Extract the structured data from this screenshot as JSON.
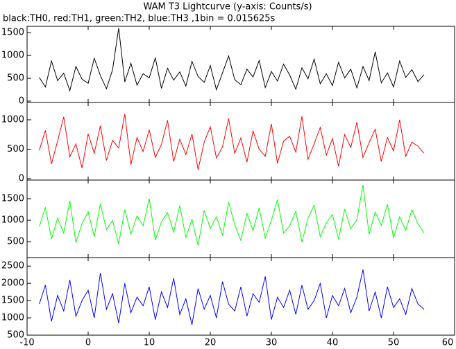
{
  "chart_data": {
    "type": "line",
    "title": "WAM T3 Lightcurve (y-axis: Counts/s)",
    "subtitle": "black:TH0, red:TH1, green:TH2, blue:TH3 ,1bin = 0.015625s",
    "x": [
      -8,
      -7,
      -6,
      -5,
      -4,
      -3,
      -2,
      -1,
      0,
      1,
      2,
      3,
      4,
      5,
      6,
      7,
      8,
      9,
      10,
      11,
      12,
      13,
      14,
      15,
      16,
      17,
      18,
      19,
      20,
      21,
      22,
      23,
      24,
      25,
      26,
      27,
      28,
      29,
      30,
      31,
      32,
      33,
      34,
      35,
      36,
      37,
      38,
      39,
      40,
      41,
      42,
      43,
      44,
      45,
      46,
      47,
      48,
      49,
      50,
      51,
      52,
      53,
      54,
      55
    ],
    "xlim": [
      -10,
      60
    ],
    "xticks": [
      -10,
      0,
      10,
      20,
      30,
      40,
      50,
      60
    ],
    "series": [
      {
        "color": "#000000",
        "ylim": [
          -30,
          1640
        ],
        "yticks": [
          0,
          500,
          1000,
          1500
        ],
        "values": [
          520,
          310,
          880,
          450,
          610,
          230,
          760,
          480,
          390,
          940,
          560,
          270,
          690,
          1600,
          420,
          830,
          350,
          600,
          510,
          950,
          280,
          720,
          460,
          640,
          330,
          870,
          540,
          410,
          780,
          250,
          620,
          990,
          470,
          360,
          700,
          530,
          890,
          300,
          650,
          440,
          810,
          570,
          260,
          730,
          490,
          920,
          380,
          600,
          340,
          850,
          510,
          700,
          290,
          760,
          450,
          1080,
          400,
          620,
          310,
          880,
          520,
          690,
          430,
          580
        ]
      },
      {
        "color": "#ff0000",
        "ylim": [
          -24,
          1294
        ],
        "yticks": [
          0,
          500,
          1000
        ],
        "values": [
          480,
          820,
          250,
          640,
          1050,
          370,
          590,
          180,
          760,
          430,
          900,
          310,
          650,
          520,
          1100,
          240,
          700,
          460,
          830,
          360,
          580,
          990,
          290,
          670,
          410,
          760,
          150,
          620,
          880,
          350,
          540,
          1020,
          430,
          690,
          280,
          810,
          500,
          380,
          930,
          260,
          640,
          720,
          450,
          1060,
          330,
          590,
          870,
          400,
          680,
          210,
          750,
          530,
          960,
          360,
          610,
          840,
          290,
          700,
          470,
          1000,
          380,
          620,
          550,
          430
        ]
      },
      {
        "color": "#00ff00",
        "ylim": [
          130,
          1935
        ],
        "yticks": [
          500,
          1000,
          1500
        ],
        "values": [
          850,
          1300,
          560,
          1050,
          700,
          1450,
          480,
          920,
          1200,
          620,
          1380,
          780,
          990,
          450,
          1250,
          680,
          1100,
          870,
          1500,
          540,
          960,
          1180,
          720,
          1340,
          600,
          1020,
          410,
          1230,
          810,
          1080,
          650,
          1420,
          900,
          530,
          1160,
          760,
          1290,
          580,
          1000,
          1480,
          700,
          870,
          1210,
          490,
          1050,
          1350,
          620,
          940,
          1130,
          560,
          1260,
          800,
          1010,
          1820,
          670,
          1190,
          880,
          1370,
          590,
          1080,
          760,
          1240,
          920,
          700
        ]
      },
      {
        "color": "#0000ff",
        "ylim": [
          500,
          2745
        ],
        "yticks": [
          500,
          1000,
          1500,
          2000,
          2500
        ],
        "values": [
          1400,
          1950,
          900,
          1650,
          1200,
          2100,
          1050,
          1500,
          1800,
          1000,
          2300,
          1250,
          1700,
          850,
          2000,
          1150,
          1600,
          1350,
          1900,
          950,
          1750,
          1300,
          2150,
          1100,
          1550,
          800,
          1850,
          1250,
          1650,
          1000,
          2050,
          1400,
          1200,
          1900,
          1050,
          1700,
          1450,
          2200,
          950,
          1600,
          1300,
          1800,
          1100,
          1950,
          1250,
          1500,
          2000,
          1000,
          1650,
          1350,
          1850,
          1150,
          1600,
          2400,
          1200,
          1750,
          1000,
          1900,
          1300,
          1550,
          1100,
          1850,
          1400,
          1250
        ]
      }
    ]
  }
}
